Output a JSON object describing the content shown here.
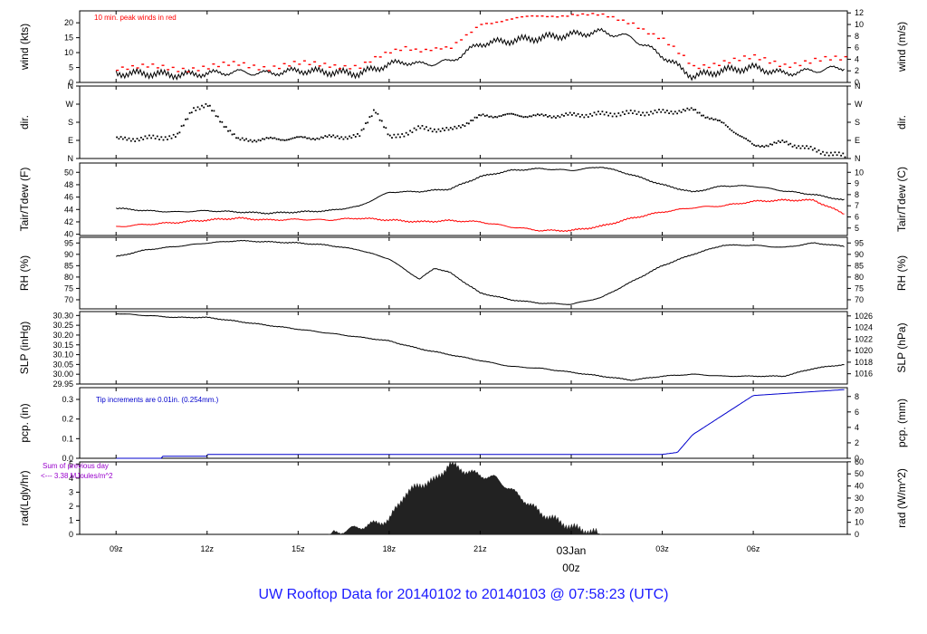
{
  "title": "UW Rooftop Data for 20140102  to  20140103 @ 07:58:23  (UTC)",
  "colors": {
    "frame": "#000000",
    "series_main": "#000000",
    "peak_winds": "#ff0000",
    "dewpoint": "#ff0000",
    "precip": "#0000cc",
    "radiation_fill": "#222222",
    "radiation_note": "#9900cc",
    "date_marker": "#ff0000",
    "title": "#1a1aff"
  },
  "chart_data": [
    {
      "type": "line",
      "id": "wind",
      "ylabel_left": "wind (kts)",
      "ylabel_right": "wind (m/s)",
      "annotation": "10 min. peak winds in red",
      "ylim": [
        0,
        24
      ],
      "yticks_left": [
        0,
        5,
        10,
        15,
        20
      ],
      "right_ylim": [
        0,
        12.35
      ],
      "yticks_right": [
        0,
        2,
        4,
        6,
        8,
        10,
        12
      ],
      "x_hours": [
        0,
        1,
        2,
        3,
        4,
        5,
        6,
        7,
        8,
        9,
        9.5,
        10,
        11,
        12,
        13,
        14,
        15,
        16,
        17,
        18,
        19,
        20,
        21,
        22,
        23,
        24
      ],
      "values": [
        3,
        3,
        2.5,
        3,
        3.5,
        3,
        4,
        3.5,
        3,
        6,
        7,
        6,
        7,
        13,
        14,
        15,
        16,
        17,
        15,
        9,
        2,
        4,
        5,
        3,
        4,
        5
      ],
      "peak_values": [
        5,
        5,
        4.5,
        5,
        6,
        5,
        6,
        6,
        5,
        10,
        12,
        11,
        11,
        20,
        21,
        22,
        23,
        22,
        20,
        14,
        5,
        7,
        8,
        6,
        7,
        8
      ]
    },
    {
      "type": "scatter",
      "id": "dir",
      "ylabel_left": "dir.",
      "ylabel_right": "dir.",
      "ylim": [
        0,
        360
      ],
      "ytick_values": [
        0,
        90,
        180,
        270,
        360
      ],
      "ytick_labels": [
        "N",
        "E",
        "S",
        "W",
        "N"
      ],
      "x_hours": [
        0,
        1,
        2,
        2.5,
        3,
        4,
        5,
        6,
        7,
        8,
        8.5,
        9,
        10,
        11,
        12,
        13,
        14,
        15,
        16,
        17,
        18,
        19,
        20,
        20.5,
        21,
        22,
        23,
        24
      ],
      "values": [
        95,
        100,
        110,
        250,
        260,
        90,
        95,
        100,
        105,
        110,
        250,
        100,
        150,
        140,
        210,
        215,
        210,
        215,
        220,
        225,
        230,
        240,
        170,
        120,
        60,
        80,
        40,
        10
      ]
    },
    {
      "type": "line",
      "id": "temp",
      "ylabel_left": "Tair/Tdew (F)",
      "ylabel_right": "Tair/Tdew (C)",
      "ylim": [
        39.8,
        51.5
      ],
      "yticks_left": [
        40,
        42,
        44,
        46,
        48,
        50
      ],
      "yticks_right": [
        5,
        6,
        7,
        8,
        9,
        10
      ],
      "series": [
        {
          "name": "Tair",
          "x_hours": [
            0,
            1,
            2,
            3,
            4,
            5,
            6,
            7,
            8,
            9,
            10,
            11,
            12,
            13,
            14,
            15,
            16,
            17,
            18,
            19,
            20,
            21,
            22,
            23,
            24
          ],
          "values": [
            44.2,
            43.8,
            43.6,
            43.8,
            43.6,
            43.4,
            43.6,
            43.8,
            44.5,
            46.8,
            46.9,
            47.3,
            49.3,
            50.3,
            50.6,
            50.3,
            50.9,
            49.6,
            48.0,
            46.8,
            47.8,
            47.8,
            47.0,
            46.4,
            45.5
          ]
        },
        {
          "name": "Tdew",
          "x_hours": [
            0,
            1,
            2,
            3,
            4,
            5,
            6,
            7,
            8,
            9,
            10,
            11,
            12,
            13,
            14,
            15,
            16,
            17,
            18,
            19,
            20,
            21,
            22,
            23,
            24
          ],
          "values": [
            41.2,
            41.6,
            41.9,
            42.3,
            42.6,
            42.3,
            42.4,
            42.3,
            42.6,
            42.3,
            42.0,
            42.2,
            42.0,
            41.2,
            40.6,
            40.6,
            41.3,
            42.6,
            43.6,
            44.3,
            44.6,
            45.3,
            45.5,
            45.5,
            43.3
          ]
        }
      ]
    },
    {
      "type": "line",
      "id": "rh",
      "ylabel_left": "RH (%)",
      "ylabel_right": "RH (%)",
      "ylim": [
        66,
        97.5
      ],
      "yticks": [
        70,
        75,
        80,
        85,
        90,
        95
      ],
      "x_hours": [
        0,
        1,
        2,
        3,
        4,
        5,
        6,
        7,
        8,
        9,
        10,
        10.5,
        11,
        12,
        13,
        14,
        15,
        16,
        17,
        18,
        19,
        20,
        21,
        22,
        23,
        24
      ],
      "values": [
        89,
        92,
        93.5,
        95,
        96,
        95.5,
        95,
        94,
        92,
        88,
        79,
        84,
        82,
        73,
        70,
        68.5,
        68,
        71,
        78,
        85,
        90,
        94,
        94,
        93,
        95,
        93.5
      ]
    },
    {
      "type": "line",
      "id": "slp",
      "ylabel_left": "SLP (inHg)",
      "ylabel_right": "SLP (hPa)",
      "ylim": [
        29.95,
        30.32
      ],
      "yticks_left": [
        29.95,
        30.0,
        30.05,
        30.1,
        30.15,
        30.2,
        30.25,
        30.3
      ],
      "yticks_left_labels": [
        "29.95",
        "30.00",
        "30.05",
        "30.10",
        "30.15",
        "30.20",
        "30.25",
        "30.30"
      ],
      "yticks_right": [
        1016,
        1018,
        1020,
        1022,
        1024,
        1026
      ],
      "x_hours": [
        0,
        1,
        2,
        3,
        4,
        5,
        6,
        7,
        8,
        9,
        10,
        11,
        12,
        13,
        14,
        15,
        16,
        17,
        18,
        19,
        20,
        21,
        22,
        23,
        24
      ],
      "values": [
        30.31,
        30.3,
        30.29,
        30.29,
        30.27,
        30.25,
        30.23,
        30.21,
        30.19,
        30.17,
        30.13,
        30.1,
        30.07,
        30.04,
        30.03,
        30.01,
        29.99,
        29.97,
        29.99,
        30.0,
        29.99,
        29.99,
        29.99,
        30.03,
        30.05
      ]
    },
    {
      "type": "line",
      "id": "pcp",
      "ylabel_left": "pcp. (in)",
      "ylabel_right": "pcp. (mm)",
      "annotation": "Tip increments are 0.01in. (0.254mm.)",
      "ylim": [
        0,
        0.36
      ],
      "yticks_left": [
        0.0,
        0.1,
        0.2,
        0.3
      ],
      "yticks_left_labels": [
        "0.0",
        "0.1",
        "0.2",
        "0.3"
      ],
      "yticks_right": [
        0,
        2,
        4,
        6,
        8
      ],
      "x_hours": [
        0,
        1.5,
        1.5,
        3,
        3,
        18,
        18.5,
        19,
        20,
        21,
        22,
        23,
        24
      ],
      "values": [
        0,
        0,
        0.01,
        0.01,
        0.02,
        0.02,
        0.03,
        0.12,
        0.22,
        0.32,
        0.33,
        0.34,
        0.35
      ]
    },
    {
      "type": "area",
      "id": "rad",
      "ylabel_left": "rad(Lgly/hr)",
      "ylabel_right": "rad (W/m^2)",
      "annotation_lines": [
        "Sum of previous day",
        "<--- 3.38 MJoules/m^2"
      ],
      "ylim": [
        0,
        5.15
      ],
      "yticks_left": [
        0,
        1,
        2,
        3,
        4,
        5
      ],
      "yticks_right": [
        0,
        10,
        20,
        30,
        40,
        50,
        60
      ],
      "x_hours": [
        7,
        8,
        9,
        9.5,
        10,
        10.5,
        11,
        11.5,
        12,
        12.5,
        13,
        14,
        15,
        16
      ],
      "values": [
        0,
        0.5,
        1,
        2.8,
        3.5,
        3.8,
        5,
        4.5,
        4.2,
        4.0,
        3.2,
        1.5,
        0.5,
        0
      ]
    }
  ],
  "x_axis": {
    "tick_labels": [
      "09z",
      "12z",
      "15z",
      "18z",
      "21z",
      "03z",
      "06z"
    ],
    "tick_hours": [
      0,
      3,
      6,
      9,
      12,
      18,
      21
    ],
    "date_label_line1": "03Jan",
    "date_label_line2": "00z",
    "date_label_hour": 15
  }
}
